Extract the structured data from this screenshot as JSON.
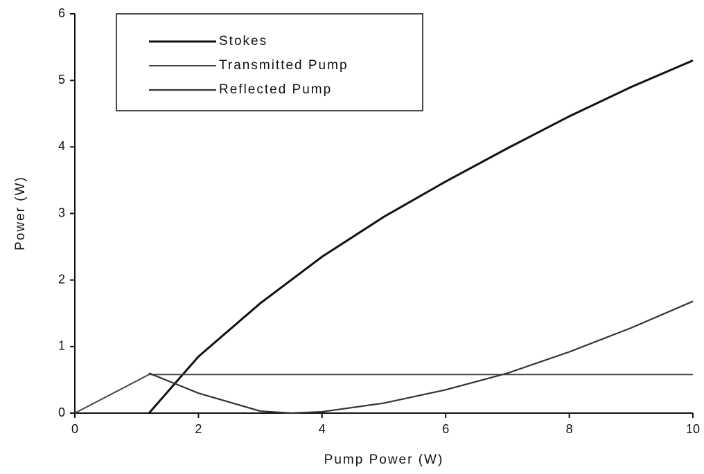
{
  "chart_data": {
    "type": "line",
    "xlabel": "Pump Power (W)",
    "ylabel": "Power (W)",
    "xlim": [
      0,
      10
    ],
    "xticks": [
      0,
      2,
      4,
      6,
      8,
      10
    ],
    "ylim": [
      0,
      6
    ],
    "yticks": [
      0,
      1,
      2,
      3,
      4,
      5,
      6
    ],
    "legend": "upper left",
    "series": [
      {
        "name": "Stokes",
        "color": "#111111",
        "x": [
          1.2,
          2,
          3,
          4,
          5,
          6,
          7,
          8,
          9,
          10
        ],
        "values": [
          0,
          0.85,
          1.65,
          2.35,
          2.95,
          3.48,
          3.98,
          4.46,
          4.9,
          5.3
        ]
      },
      {
        "name": "Transmitted Pump",
        "color": "#444444",
        "x": [
          0,
          1.2,
          10
        ],
        "values": [
          0,
          0.58,
          0.58
        ]
      },
      {
        "name": "Reflected Pump",
        "color": "#333333",
        "x": [
          1.2,
          2,
          3,
          3.5,
          4,
          5,
          6,
          7,
          8,
          9,
          10
        ],
        "values": [
          0.6,
          0.3,
          0.03,
          0,
          0.02,
          0.15,
          0.35,
          0.6,
          0.92,
          1.28,
          1.68
        ]
      }
    ]
  }
}
